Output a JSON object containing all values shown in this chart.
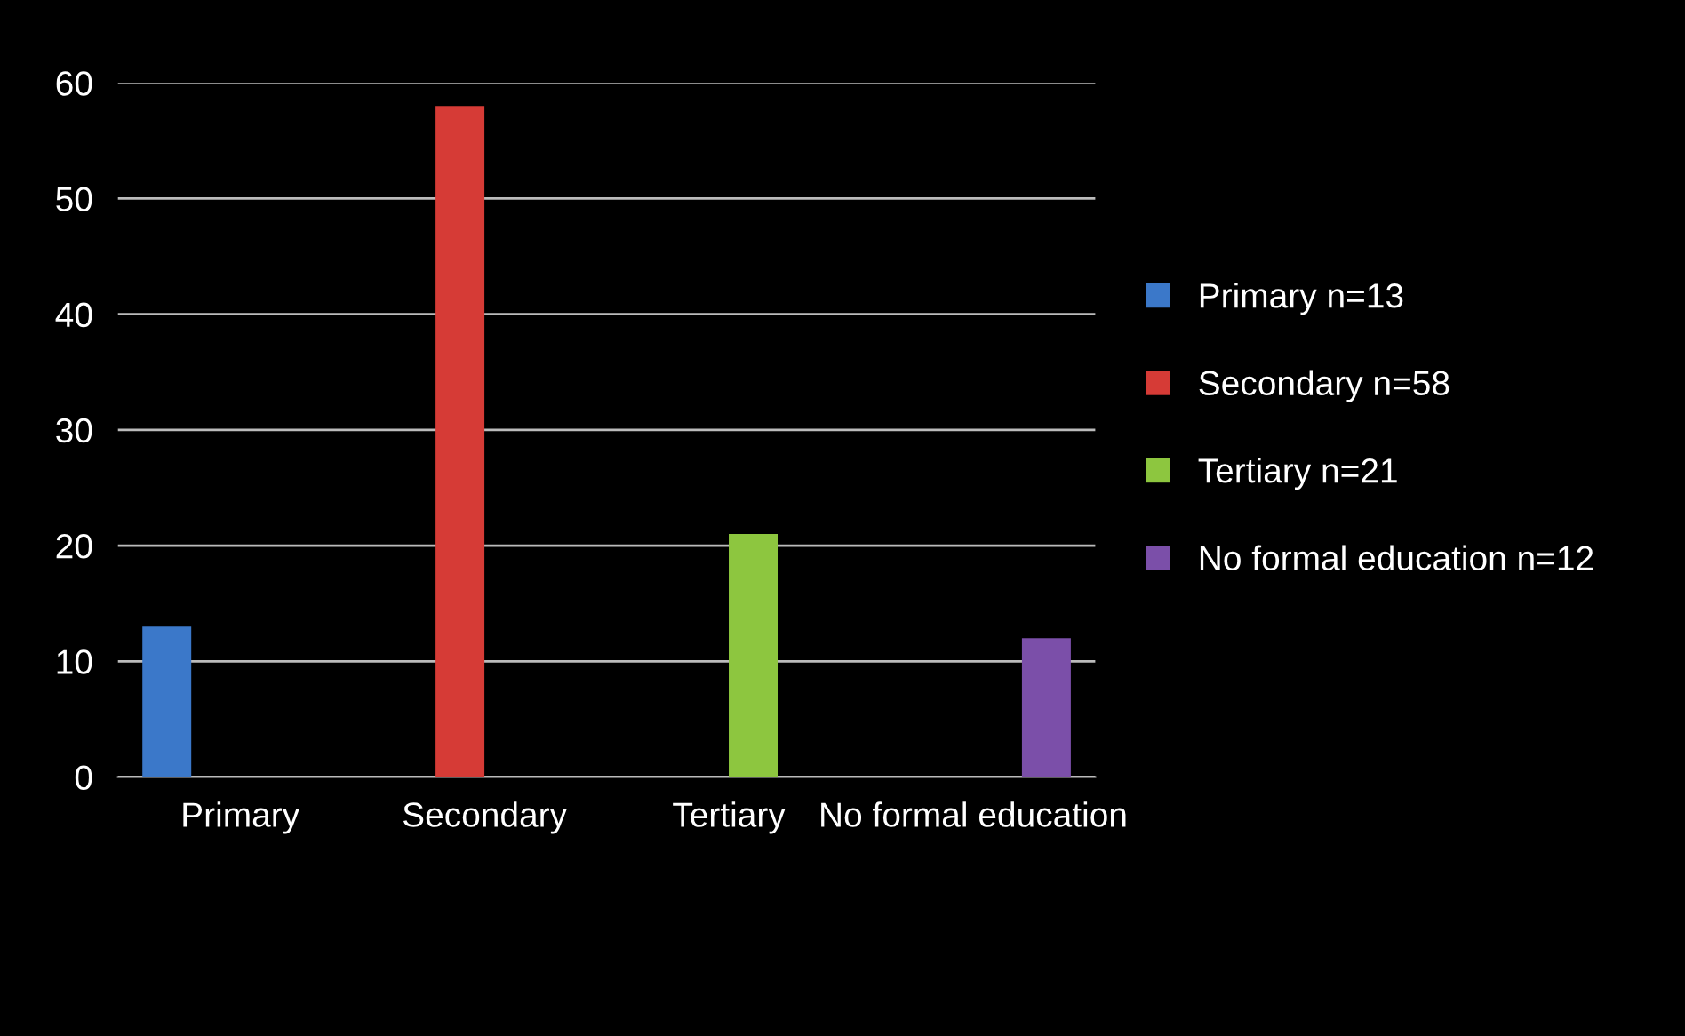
{
  "chart_data": {
    "type": "bar",
    "categories": [
      "Primary",
      "Secondary",
      "Tertiary",
      "No formal education"
    ],
    "series": [
      {
        "name": "Primary n=13",
        "color": "#3b78c9",
        "values": [
          13,
          null,
          null,
          null
        ]
      },
      {
        "name": "Secondary n=58",
        "color": "#d63b36",
        "values": [
          null,
          58,
          null,
          null
        ]
      },
      {
        "name": "Tertiary n=21",
        "color": "#8dc63f",
        "values": [
          null,
          null,
          21,
          null
        ]
      },
      {
        "name": "No formal education n=12",
        "color": "#7b4fa9",
        "values": [
          null,
          null,
          null,
          12
        ]
      }
    ],
    "ylim": [
      0,
      60
    ],
    "yticks": [
      0,
      10,
      20,
      30,
      40,
      50,
      60
    ],
    "grid": "y",
    "legend": "right"
  }
}
